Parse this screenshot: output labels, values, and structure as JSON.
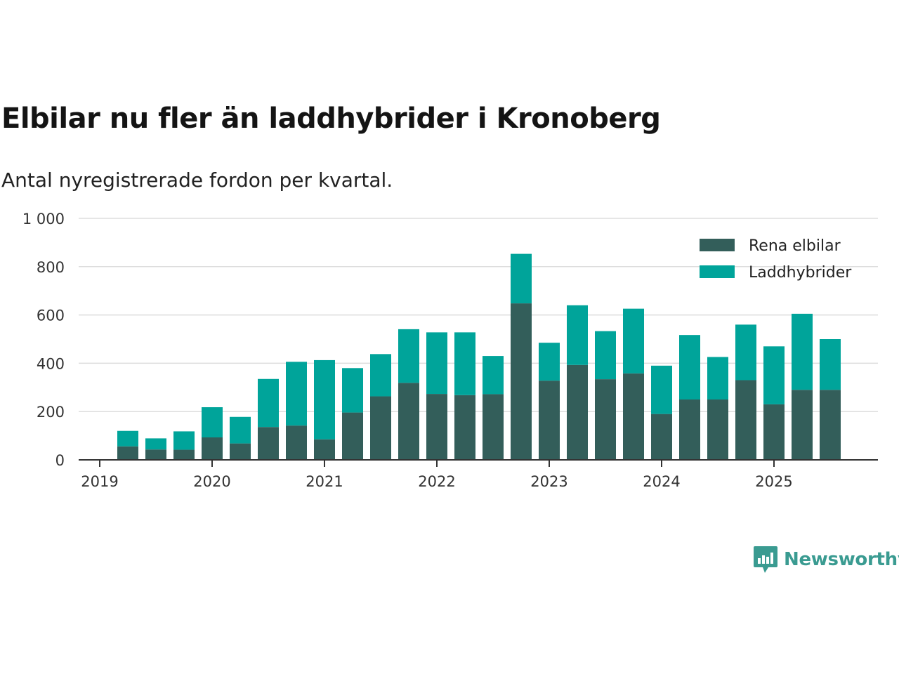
{
  "title": "Elbilar nu fler än laddhybrider i Kronoberg",
  "subtitle": "Antal nyregistrerade fordon per kvartal.",
  "brand": "Newsworthy",
  "colors": {
    "elbilar": "#335e5a",
    "laddhybrider": "#00a49a",
    "grid": "#dddddd",
    "axis": "#333333",
    "brand": "#3a9b91"
  },
  "chart_data": {
    "type": "bar",
    "stacked": true,
    "title": "Elbilar nu fler än laddhybrider i Kronoberg",
    "subtitle": "Antal nyregistrerade fordon per kvartal.",
    "xlabel": "",
    "ylabel": "",
    "ylim": [
      0,
      1000
    ],
    "yticks": [
      0,
      200,
      400,
      600,
      800,
      1000
    ],
    "ytick_labels": [
      "0",
      "200",
      "400",
      "600",
      "800",
      "1 000"
    ],
    "xtick_labels": [
      "2019",
      "2020",
      "2021",
      "2022",
      "2023",
      "2024",
      "2025"
    ],
    "legend": [
      "Rena elbilar",
      "Laddhybrider"
    ],
    "legend_position": "top-right",
    "categories": [
      "2019 Q2",
      "2019 Q3",
      "2019 Q4",
      "2020 Q1",
      "2020 Q2",
      "2020 Q3",
      "2020 Q4",
      "2021 Q1",
      "2021 Q2",
      "2021 Q3",
      "2021 Q4",
      "2022 Q1",
      "2022 Q2",
      "2022 Q3",
      "2022 Q4",
      "2023 Q1",
      "2023 Q2",
      "2023 Q3",
      "2023 Q4",
      "2024 Q1",
      "2024 Q2",
      "2024 Q3",
      "2024 Q4",
      "2025 Q1",
      "2025 Q2",
      "2025 Q3"
    ],
    "series": [
      {
        "name": "Rena elbilar",
        "values": [
          56,
          43,
          42,
          93,
          68,
          136,
          142,
          85,
          196,
          263,
          319,
          273,
          268,
          272,
          648,
          328,
          393,
          334,
          358,
          190,
          250,
          250,
          330,
          230,
          290,
          290
        ]
      },
      {
        "name": "Laddhybrider",
        "values": [
          64,
          46,
          76,
          125,
          110,
          199,
          264,
          328,
          184,
          175,
          222,
          255,
          260,
          158,
          205,
          157,
          247,
          199,
          268,
          200,
          267,
          176,
          230,
          240,
          315,
          210
        ]
      }
    ]
  }
}
